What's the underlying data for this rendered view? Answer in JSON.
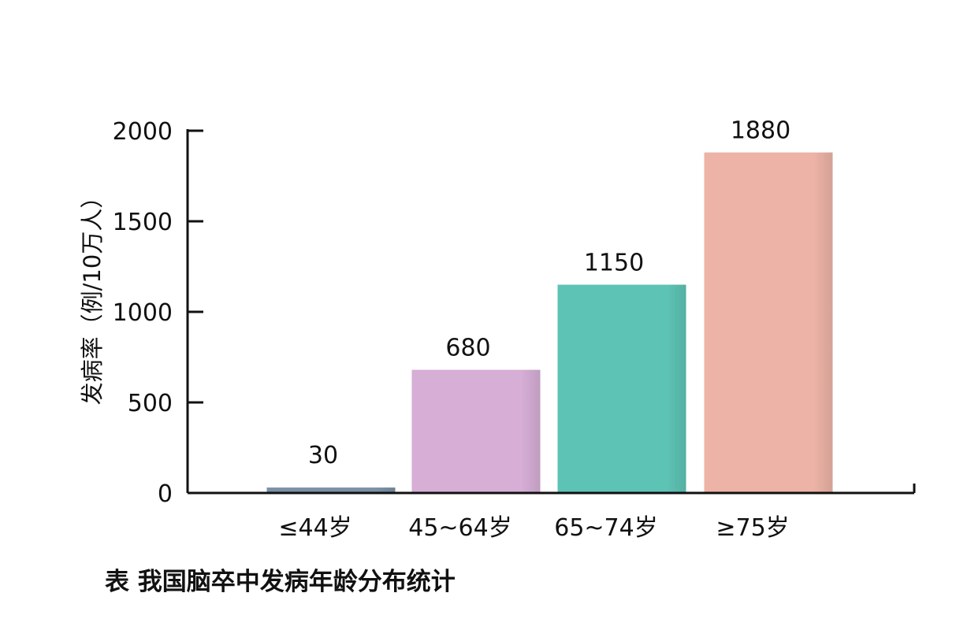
{
  "caption": "表 我国脑卒中发病年龄分布统计",
  "chart_data": {
    "type": "bar",
    "title": "",
    "xlabel": "",
    "ylabel": "发病率（例/10万人）",
    "ylim": [
      0,
      2000
    ],
    "yticks": [
      0,
      500,
      1000,
      1500,
      2000
    ],
    "grid": false,
    "categories": [
      "≤44岁",
      "45~64岁",
      "65~74岁",
      "≥75岁"
    ],
    "values": [
      30,
      680,
      1150,
      1880
    ],
    "data_labels": [
      "30",
      "680",
      "1150",
      "1880"
    ],
    "colors": [
      "#7a90a6",
      "#d6aed6",
      "#5dc3b4",
      "#ecb3a6"
    ]
  }
}
